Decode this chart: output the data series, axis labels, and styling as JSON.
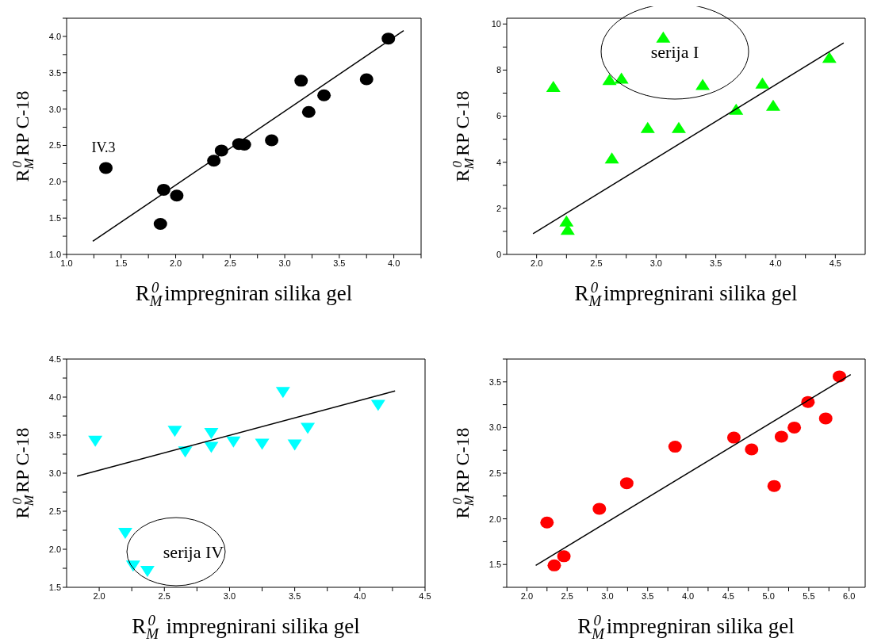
{
  "chart_data": [
    {
      "type": "scatter",
      "xlabel": "R$_{M}$$^{0}$ impregniran silika gel",
      "ylabel": "R$_{M}$$^{0}$ RP C-18",
      "xlim": [
        1.0,
        4.25
      ],
      "ylim": [
        1.0,
        4.25
      ],
      "xticks": [
        {
          "value": 1.0,
          "label": "1.0"
        },
        {
          "value": 1.25,
          "label": null
        },
        {
          "value": 1.5,
          "label": "1.5"
        },
        {
          "value": 1.75,
          "label": null
        },
        {
          "value": 2.0,
          "label": "2.0"
        },
        {
          "value": 2.25,
          "label": null
        },
        {
          "value": 2.5,
          "label": "2.5"
        },
        {
          "value": 2.75,
          "label": null
        },
        {
          "value": 3.0,
          "label": "3.0"
        },
        {
          "value": 3.25,
          "label": null
        },
        {
          "value": 3.5,
          "label": "3.5"
        },
        {
          "value": 3.75,
          "label": null
        },
        {
          "value": 4.0,
          "label": "4.0"
        },
        {
          "value": 4.25,
          "label": null
        }
      ],
      "yticks": [
        {
          "value": 1.0,
          "label": "1.0"
        },
        {
          "value": 1.25,
          "label": null
        },
        {
          "value": 1.5,
          "label": "1.5"
        },
        {
          "value": 1.75,
          "label": null
        },
        {
          "value": 2.0,
          "label": "2.0"
        },
        {
          "value": 2.25,
          "label": null
        },
        {
          "value": 2.5,
          "label": "2.5"
        },
        {
          "value": 2.75,
          "label": null
        },
        {
          "value": 3.0,
          "label": "3.0"
        },
        {
          "value": 3.25,
          "label": null
        },
        {
          "value": 3.5,
          "label": "3.5"
        },
        {
          "value": 3.75,
          "label": null
        },
        {
          "value": 4.0,
          "label": "4.0"
        },
        {
          "value": 4.25,
          "label": null
        }
      ],
      "series": [
        {
          "type": "scatter",
          "color": "#000000",
          "marker": "circle",
          "x": [
            1.36,
            1.86,
            1.89,
            2.01,
            2.35,
            2.42,
            2.58,
            2.63,
            2.88,
            3.15,
            3.22,
            3.36,
            3.75,
            3.95
          ],
          "values": [
            2.19,
            1.42,
            1.89,
            1.81,
            2.29,
            2.43,
            2.52,
            2.51,
            2.57,
            3.39,
            2.96,
            3.19,
            3.41,
            3.97
          ]
        },
        {
          "type": "line",
          "color": "#000000",
          "marker": "none",
          "x": [
            1.24,
            4.09
          ],
          "values": [
            1.18,
            4.08
          ]
        }
      ],
      "annotations": [
        {
          "text": "IV.3",
          "x": 1.36,
          "y": 2.19
        }
      ]
    },
    {
      "type": "scatter",
      "xlabel": "R$_{M}$$^{0}$ impregnirani silika gel",
      "ylabel": "R$_{M}$$^{0}$ RP C-18",
      "xlim": [
        1.75,
        4.75
      ],
      "ylim": [
        0,
        10.25
      ],
      "xticks": [
        {
          "value": 2.0,
          "label": "2.0"
        },
        {
          "value": 2.25,
          "label": null
        },
        {
          "value": 2.5,
          "label": "2.5"
        },
        {
          "value": 2.75,
          "label": null
        },
        {
          "value": 3.0,
          "label": "3.0"
        },
        {
          "value": 3.25,
          "label": null
        },
        {
          "value": 3.5,
          "label": "3.5"
        },
        {
          "value": 3.75,
          "label": null
        },
        {
          "value": 4.0,
          "label": "4.0"
        },
        {
          "value": 4.25,
          "label": null
        },
        {
          "value": 4.5,
          "label": "4.5"
        }
      ],
      "yticks": [
        {
          "value": 0,
          "label": "0"
        },
        {
          "value": 1,
          "label": null
        },
        {
          "value": 2,
          "label": "2"
        },
        {
          "value": 3,
          "label": null
        },
        {
          "value": 4,
          "label": "4"
        },
        {
          "value": 5,
          "label": null
        },
        {
          "value": 6,
          "label": "6"
        },
        {
          "value": 7,
          "label": null
        },
        {
          "value": 8,
          "label": "8"
        },
        {
          "value": 9,
          "label": null
        },
        {
          "value": 10,
          "label": "10"
        }
      ],
      "series": [
        {
          "type": "scatter",
          "color": "#00ff00",
          "marker": "triangle",
          "x": [
            2.14,
            2.25,
            2.26,
            2.63,
            2.61,
            2.71,
            3.06,
            2.93,
            3.19,
            3.39,
            3.67,
            3.89,
            3.98,
            4.45
          ],
          "values": [
            7.26,
            1.42,
            1.06,
            4.15,
            7.56,
            7.62,
            9.4,
            5.48,
            5.48,
            7.34,
            6.27,
            7.4,
            6.44,
            8.52
          ]
        },
        {
          "type": "line",
          "color": "#000000",
          "marker": "none",
          "x": [
            1.97,
            4.57
          ],
          "values": [
            0.9,
            9.18
          ]
        }
      ],
      "annotations": [
        "serija I"
      ]
    },
    {
      "type": "scatter",
      "xlabel": "R$_{M}$$^{0}$  impregnirani silika gel",
      "ylabel": "R$_{M}$$^{0}$ RP C-18",
      "xlim": [
        1.75,
        4.5
      ],
      "ylim": [
        1.5,
        4.5
      ],
      "xticks": [
        {
          "value": 2.0,
          "label": "2.0"
        },
        {
          "value": 2.25,
          "label": null
        },
        {
          "value": 2.5,
          "label": "2.5"
        },
        {
          "value": 2.75,
          "label": null
        },
        {
          "value": 3.0,
          "label": "3.0"
        },
        {
          "value": 3.25,
          "label": null
        },
        {
          "value": 3.5,
          "label": "3.5"
        },
        {
          "value": 3.75,
          "label": null
        },
        {
          "value": 4.0,
          "label": "4.0"
        },
        {
          "value": 4.25,
          "label": null
        },
        {
          "value": 4.5,
          "label": "4.5"
        }
      ],
      "yticks": [
        {
          "value": 1.5,
          "label": "1.5"
        },
        {
          "value": 1.75,
          "label": null
        },
        {
          "value": 2.0,
          "label": "2.0"
        },
        {
          "value": 2.25,
          "label": null
        },
        {
          "value": 2.5,
          "label": "2.5"
        },
        {
          "value": 2.75,
          "label": null
        },
        {
          "value": 3.0,
          "label": "3.0"
        },
        {
          "value": 3.25,
          "label": null
        },
        {
          "value": 3.5,
          "label": "3.5"
        },
        {
          "value": 3.75,
          "label": null
        },
        {
          "value": 4.0,
          "label": "4.0"
        },
        {
          "value": 4.25,
          "label": null
        },
        {
          "value": 4.5,
          "label": "4.5"
        }
      ],
      "series": [
        {
          "type": "scatter",
          "color": "#00ffff",
          "marker": "triangle-down",
          "x": [
            1.97,
            2.2,
            2.26,
            2.37,
            2.58,
            2.66,
            2.86,
            2.86,
            3.03,
            3.25,
            3.5,
            3.6,
            3.41,
            4.14
          ],
          "values": [
            3.43,
            2.22,
            1.79,
            1.72,
            3.56,
            3.29,
            3.53,
            3.35,
            3.42,
            3.39,
            3.38,
            3.6,
            4.07,
            3.9
          ]
        },
        {
          "type": "line",
          "color": "#000000",
          "marker": "none",
          "x": [
            1.83,
            4.27
          ],
          "values": [
            2.96,
            4.08
          ]
        }
      ],
      "annotations": [
        "serija IV"
      ]
    },
    {
      "type": "scatter",
      "xlabel": "R$_{M}$$^{0}$ impregniran silika gel",
      "ylabel": "R$_{M}$$^{0}$ RP C-18",
      "xlim": [
        1.75,
        6.2
      ],
      "ylim": [
        1.25,
        3.75
      ],
      "xticks": [
        {
          "value": 2.0,
          "label": "2.0"
        },
        {
          "value": 2.25,
          "label": null
        },
        {
          "value": 2.5,
          "label": "2.5"
        },
        {
          "value": 2.75,
          "label": null
        },
        {
          "value": 3.0,
          "label": "3.0"
        },
        {
          "value": 3.25,
          "label": null
        },
        {
          "value": 3.5,
          "label": "3.5"
        },
        {
          "value": 3.75,
          "label": null
        },
        {
          "value": 4.0,
          "label": "4.0"
        },
        {
          "value": 4.25,
          "label": null
        },
        {
          "value": 4.5,
          "label": "4.5"
        },
        {
          "value": 4.75,
          "label": null
        },
        {
          "value": 5.0,
          "label": "5.0"
        },
        {
          "value": 5.25,
          "label": null
        },
        {
          "value": 5.5,
          "label": "5.5"
        },
        {
          "value": 5.75,
          "label": null
        },
        {
          "value": 6.0,
          "label": "6.0"
        }
      ],
      "yticks": [
        {
          "value": 1.25,
          "label": null
        },
        {
          "value": 1.5,
          "label": "1.5"
        },
        {
          "value": 1.75,
          "label": null
        },
        {
          "value": 2.0,
          "label": "2.0"
        },
        {
          "value": 2.25,
          "label": null
        },
        {
          "value": 2.5,
          "label": "2.5"
        },
        {
          "value": 2.75,
          "label": null
        },
        {
          "value": 3.0,
          "label": "3.0"
        },
        {
          "value": 3.25,
          "label": null
        },
        {
          "value": 3.5,
          "label": "3.5"
        },
        {
          "value": 3.75,
          "label": null
        }
      ],
      "series": [
        {
          "type": "scatter",
          "color": "#ff0000",
          "marker": "circle",
          "x": [
            2.25,
            2.34,
            2.46,
            2.9,
            3.24,
            3.84,
            4.57,
            4.79,
            5.07,
            5.16,
            5.32,
            5.49,
            5.71,
            5.88
          ],
          "values": [
            1.96,
            1.49,
            1.59,
            2.11,
            2.39,
            2.79,
            2.89,
            2.76,
            2.36,
            2.9,
            3.0,
            3.28,
            3.1,
            3.56
          ]
        },
        {
          "type": "line",
          "color": "#000000",
          "marker": "none",
          "x": [
            2.11,
            6.02
          ],
          "values": [
            1.49,
            3.58
          ]
        }
      ]
    }
  ]
}
